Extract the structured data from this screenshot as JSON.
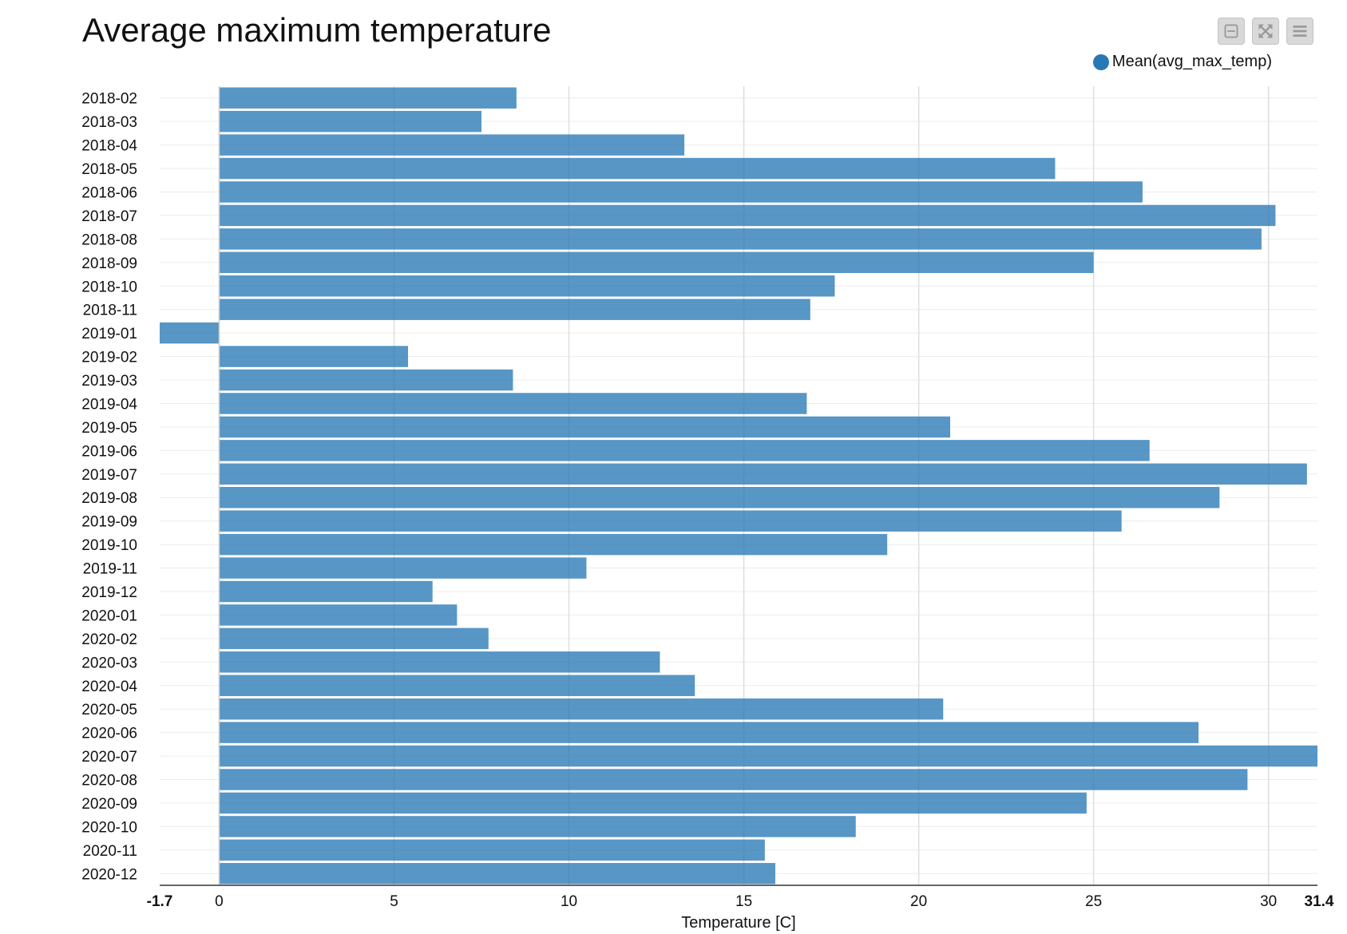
{
  "chart_data": {
    "type": "bar",
    "orientation": "horizontal",
    "title": "Average maximum temperature",
    "xlabel": "Temperature [C]",
    "ylabel": "",
    "xlim": [
      -1.7,
      31.4
    ],
    "xticks": [
      0,
      5,
      10,
      15,
      20,
      25,
      30
    ],
    "xtick_extremes": [
      "-1.7",
      "31.4"
    ],
    "grid": true,
    "legend_position": "top-right",
    "series": [
      {
        "name": "Mean(avg_max_temp)",
        "color": "#2878b5",
        "values": [
          8.5,
          7.5,
          13.3,
          23.9,
          26.4,
          30.2,
          29.8,
          25.0,
          17.6,
          16.9,
          -1.7,
          5.4,
          8.4,
          16.8,
          20.9,
          26.6,
          31.1,
          28.6,
          25.8,
          19.1,
          10.5,
          6.1,
          6.8,
          7.7,
          12.6,
          13.6,
          20.7,
          28.0,
          31.4,
          29.4,
          24.8,
          18.2,
          15.6,
          15.9
        ]
      }
    ],
    "categories": [
      "2018-02",
      "2018-03",
      "2018-04",
      "2018-05",
      "2018-06",
      "2018-07",
      "2018-08",
      "2018-09",
      "2018-10",
      "2018-11",
      "2019-01",
      "2019-02",
      "2019-03",
      "2019-04",
      "2019-05",
      "2019-06",
      "2019-07",
      "2019-08",
      "2019-09",
      "2019-10",
      "2019-11",
      "2019-12",
      "2020-01",
      "2020-02",
      "2020-03",
      "2020-04",
      "2020-05",
      "2020-06",
      "2020-07",
      "2020-08",
      "2020-09",
      "2020-10",
      "2020-11",
      "2020-12"
    ]
  },
  "toolbar": {
    "icons": [
      "minimize-icon",
      "expand-icon",
      "menu-icon"
    ]
  }
}
